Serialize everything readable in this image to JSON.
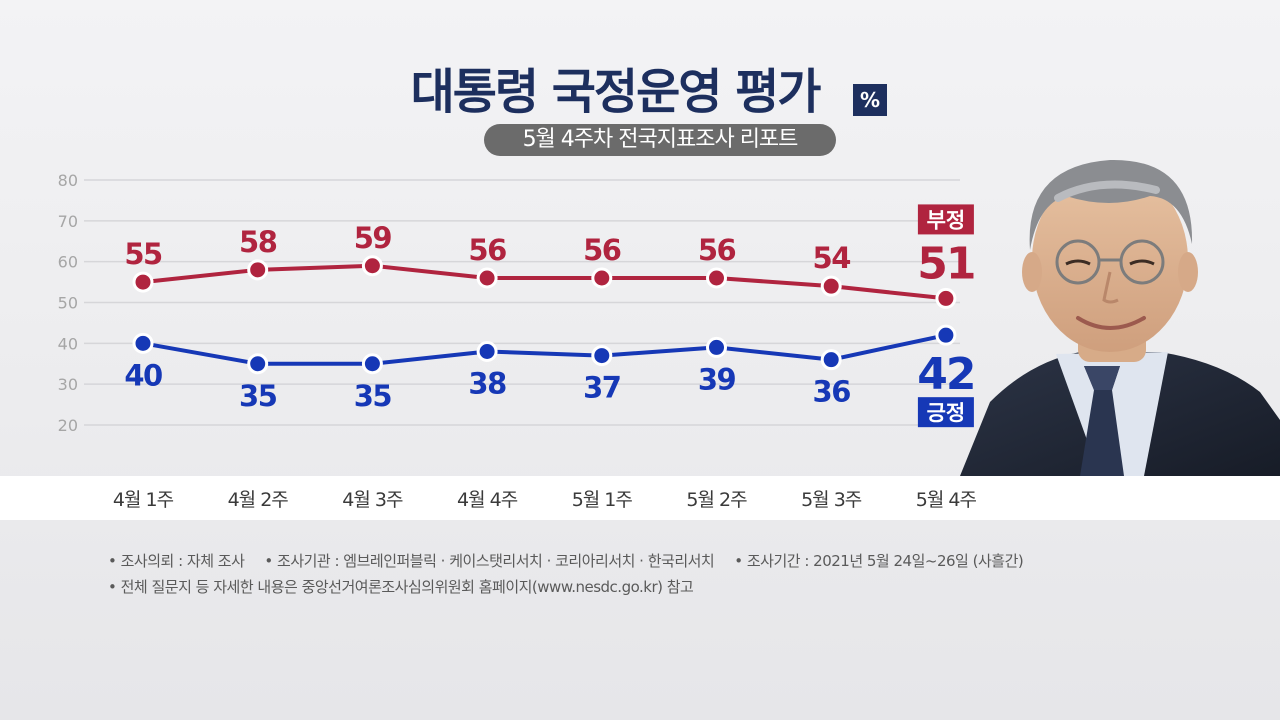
{
  "title": "대통령 국정운영 평가",
  "unit_badge": "%",
  "subtitle": "5월 4주차 전국지표조사 리포트",
  "colors": {
    "negative": "#b0243f",
    "positive": "#1638b6",
    "title": "#1d2f5e",
    "grid": "#d6d6d9",
    "axis_text": "#a6a6a6"
  },
  "chart_data": {
    "type": "line",
    "categories": [
      "4월 1주",
      "4월 2주",
      "4월 3주",
      "4월 4주",
      "5월 1주",
      "5월 2주",
      "5월 3주",
      "5월 4주"
    ],
    "series": [
      {
        "name": "부정",
        "values": [
          55,
          58,
          59,
          56,
          56,
          56,
          54,
          51
        ]
      },
      {
        "name": "긍정",
        "values": [
          40,
          35,
          35,
          38,
          37,
          39,
          36,
          42
        ]
      }
    ],
    "ylim": [
      20,
      80
    ],
    "yticks": [
      80,
      70,
      60,
      50,
      40,
      30,
      20
    ],
    "grid": true,
    "legend": "right, next to last point"
  },
  "notes": {
    "line1": [
      "조사의뢰 : 자체 조사",
      "조사기관 : 엠브레인퍼블릭 · 케이스탯리서치 · 코리아리서치 · 한국리서치",
      "조사기간 : 2021년 5월 24일~26일 (사흘간)"
    ],
    "line2": [
      "전체 질문지 등 자세한 내용은 중앙선거여론조사심의위원회 홈페이지(www.nesdc.go.kr) 참고"
    ]
  }
}
